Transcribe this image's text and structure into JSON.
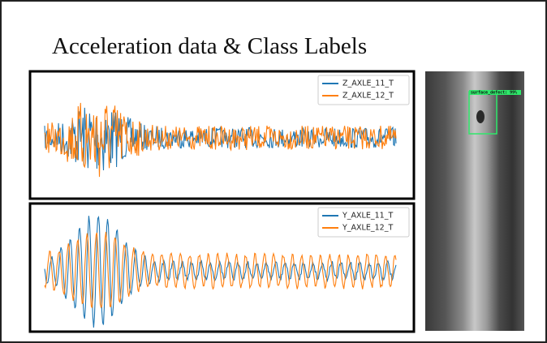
{
  "title": "Acceleration data & Class Labels",
  "plots": [
    {
      "legend": [
        "Z_AXLE_11_T",
        "Z_AXLE_12_T"
      ]
    },
    {
      "legend": [
        "Y_AXLE_11_T",
        "Y_AXLE_12_T"
      ]
    }
  ],
  "image": {
    "label": "surface_defect: 99%"
  }
}
